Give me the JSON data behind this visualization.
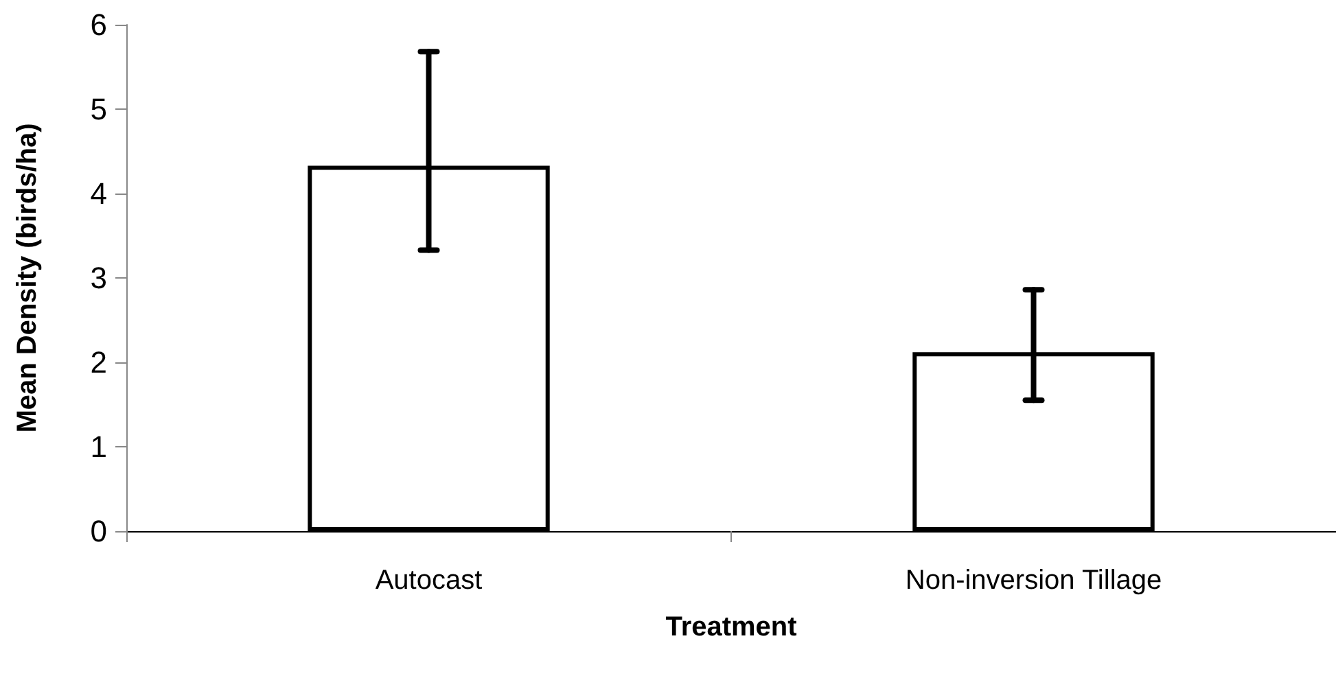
{
  "chart_data": {
    "type": "bar",
    "xlabel": "Treatment",
    "ylabel": "Mean Density (birds/ha)",
    "categories": [
      "Autocast",
      "Non-inversion Tillage"
    ],
    "values": [
      4.33,
      2.12
    ],
    "color": "#ffffff",
    "errors": [
      [
        3.33,
        5.68
      ],
      [
        1.55,
        2.86
      ]
    ],
    "ylim": [
      0,
      6
    ],
    "yticks": [
      0,
      1,
      2,
      3,
      4,
      5,
      6
    ],
    "grid": false
  }
}
